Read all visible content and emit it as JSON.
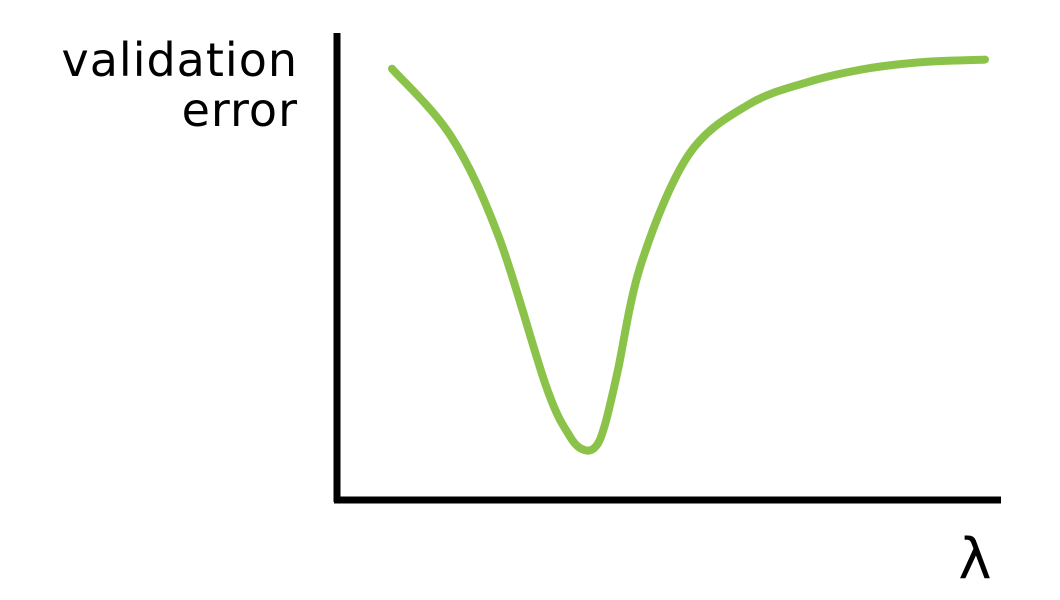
{
  "chart_data": {
    "type": "line",
    "title": "",
    "ylabel_lines": [
      "validation",
      "error"
    ],
    "xlabel": "λ",
    "x_ticks": "none",
    "y_ticks": "none",
    "grid": false,
    "legend": "none",
    "colors": {
      "line": "#8BC34A",
      "axis": "#000000",
      "background": "#ffffff"
    },
    "xlim": [
      0,
      1
    ],
    "ylim": [
      0,
      1
    ],
    "series": [
      {
        "x": [
          0.0,
          0.1,
          0.18,
          0.26,
          0.3,
          0.325,
          0.345,
          0.36,
          0.38,
          0.42,
          0.5,
          0.6,
          0.7,
          0.8,
          0.9,
          1.0
        ],
        "y": [
          0.95,
          0.8,
          0.58,
          0.25,
          0.14,
          0.11,
          0.12,
          0.17,
          0.28,
          0.52,
          0.76,
          0.87,
          0.92,
          0.95,
          0.965,
          0.97
        ]
      }
    ]
  }
}
